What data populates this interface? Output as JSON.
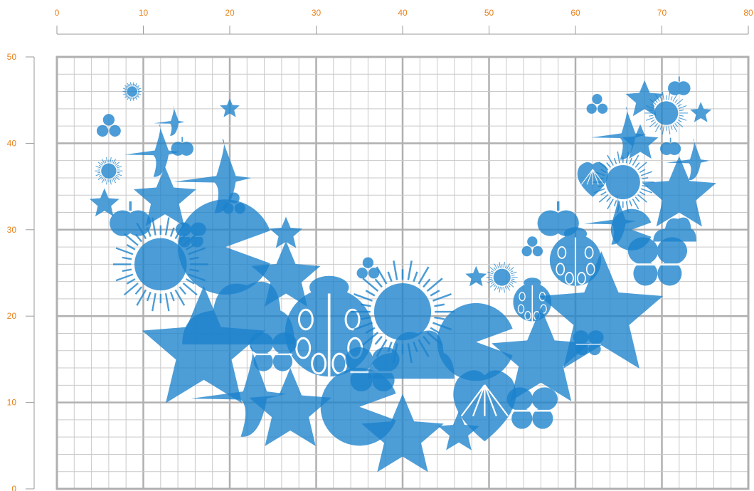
{
  "colors": {
    "axis_label": "#e8821e",
    "axis_line": "#9a9a9a",
    "grid_minor": "#c9c9c9",
    "grid_major": "#b0b0b0",
    "shape": "#1b82cc",
    "background": "#ffffff"
  },
  "axes": {
    "x_ticks": [
      "0",
      "10",
      "20",
      "30",
      "40",
      "50",
      "60",
      "70",
      "80"
    ],
    "y_ticks": [
      "50",
      "40",
      "30",
      "20",
      "10",
      "0"
    ]
  },
  "plot": {
    "x_range": [
      0,
      80
    ],
    "y_range": [
      0,
      50
    ],
    "major_step": 10,
    "minor_step": 2
  },
  "icons": [
    {
      "kind": "sun",
      "x": 8.7,
      "y": 46,
      "size": 1.1
    },
    {
      "kind": "leaf-trio",
      "x": 6,
      "y": 42,
      "size": 1.6
    },
    {
      "kind": "swallow",
      "x": 13,
      "y": 42.5,
      "size": 1.8
    },
    {
      "kind": "star",
      "x": 20,
      "y": 44,
      "size": 1.2
    },
    {
      "kind": "sun",
      "x": 6,
      "y": 36.8,
      "size": 1.6
    },
    {
      "kind": "swallow",
      "x": 11,
      "y": 39,
      "size": 3.2
    },
    {
      "kind": "apple",
      "x": 14.5,
      "y": 39.5,
      "size": 1.3
    },
    {
      "kind": "swallow",
      "x": 18,
      "y": 36,
      "size": 4.5
    },
    {
      "kind": "star",
      "x": 5.5,
      "y": 33,
      "size": 1.8
    },
    {
      "kind": "star",
      "x": 12.5,
      "y": 33.5,
      "size": 3.8
    },
    {
      "kind": "apple",
      "x": 8.5,
      "y": 31,
      "size": 2.4
    },
    {
      "kind": "leaf-trio",
      "x": 20.5,
      "y": 33,
      "size": 1.5
    },
    {
      "kind": "butterfly",
      "x": 15.5,
      "y": 29.5,
      "size": 1.8
    },
    {
      "kind": "sun",
      "x": 12,
      "y": 26,
      "size": 5.5
    },
    {
      "kind": "pacman",
      "x": 19.5,
      "y": 28,
      "size": 5.5
    },
    {
      "kind": "star",
      "x": 26.5,
      "y": 29.5,
      "size": 2.0
    },
    {
      "kind": "star",
      "x": 26.5,
      "y": 24.5,
      "size": 4.2
    },
    {
      "kind": "cloud",
      "x": 21,
      "y": 19,
      "size": 6.5
    },
    {
      "kind": "star",
      "x": 17,
      "y": 16,
      "size": 7.5
    },
    {
      "kind": "leaf-trio",
      "x": 36,
      "y": 25.5,
      "size": 1.5
    },
    {
      "kind": "ladybug",
      "x": 31.5,
      "y": 19,
      "size": 6.0
    },
    {
      "kind": "butterfly",
      "x": 25,
      "y": 16,
      "size": 2.8
    },
    {
      "kind": "sun",
      "x": 40,
      "y": 20.5,
      "size": 6.0
    },
    {
      "kind": "swallow",
      "x": 21,
      "y": 11,
      "size": 5.5
    },
    {
      "kind": "star",
      "x": 27,
      "y": 9,
      "size": 5.0
    },
    {
      "kind": "pacman",
      "x": 35,
      "y": 9.5,
      "size": 4.5
    },
    {
      "kind": "butterfly",
      "x": 36.5,
      "y": 14,
      "size": 3.2
    },
    {
      "kind": "cloud",
      "x": 41,
      "y": 14.5,
      "size": 5.0
    },
    {
      "kind": "pacman",
      "x": 48.5,
      "y": 17,
      "size": 4.5
    },
    {
      "kind": "star",
      "x": 40,
      "y": 6,
      "size": 5.0
    },
    {
      "kind": "star",
      "x": 46.5,
      "y": 6.5,
      "size": 2.5
    },
    {
      "kind": "leaf",
      "x": 49.5,
      "y": 10,
      "size": 4.5
    },
    {
      "kind": "butterfly",
      "x": 55,
      "y": 9.5,
      "size": 3.0
    },
    {
      "kind": "star",
      "x": 48.5,
      "y": 24.5,
      "size": 1.3
    },
    {
      "kind": "sun",
      "x": 51.5,
      "y": 24.5,
      "size": 1.8
    },
    {
      "kind": "ladybug",
      "x": 55,
      "y": 22,
      "size": 2.6
    },
    {
      "kind": "star",
      "x": 56,
      "y": 15,
      "size": 6.0
    },
    {
      "kind": "star",
      "x": 63,
      "y": 20,
      "size": 7.5
    },
    {
      "kind": "ladybug",
      "x": 60,
      "y": 27,
      "size": 3.5
    },
    {
      "kind": "leaf-trio",
      "x": 55,
      "y": 28,
      "size": 1.4
    },
    {
      "kind": "apple",
      "x": 58,
      "y": 31,
      "size": 2.4
    },
    {
      "kind": "swallow",
      "x": 64,
      "y": 31,
      "size": 3.0
    },
    {
      "kind": "pacman",
      "x": 66.5,
      "y": 30,
      "size": 2.4
    },
    {
      "kind": "butterfly",
      "x": 69.5,
      "y": 26.5,
      "size": 3.5
    },
    {
      "kind": "butterfly",
      "x": 61.5,
      "y": 17,
      "size": 1.8
    },
    {
      "kind": "cloud",
      "x": 71.5,
      "y": 29.5,
      "size": 2.5
    },
    {
      "kind": "star",
      "x": 72,
      "y": 34,
      "size": 4.5
    },
    {
      "kind": "sun",
      "x": 65.5,
      "y": 35.5,
      "size": 3.6
    },
    {
      "kind": "leaf",
      "x": 62,
      "y": 36,
      "size": 2.2
    },
    {
      "kind": "swallow",
      "x": 65,
      "y": 41,
      "size": 3.2
    },
    {
      "kind": "star",
      "x": 67.5,
      "y": 40,
      "size": 2.2
    },
    {
      "kind": "apple",
      "x": 71,
      "y": 39.5,
      "size": 1.2
    },
    {
      "kind": "swallow",
      "x": 73,
      "y": 38,
      "size": 2.5
    },
    {
      "kind": "leaf-trio",
      "x": 62.5,
      "y": 44.5,
      "size": 1.4
    },
    {
      "kind": "star",
      "x": 68,
      "y": 45,
      "size": 2.3
    },
    {
      "kind": "sun",
      "x": 70.5,
      "y": 43.5,
      "size": 2.5
    },
    {
      "kind": "apple",
      "x": 72,
      "y": 46.5,
      "size": 1.3
    },
    {
      "kind": "star",
      "x": 74.5,
      "y": 43.5,
      "size": 1.3
    }
  ]
}
